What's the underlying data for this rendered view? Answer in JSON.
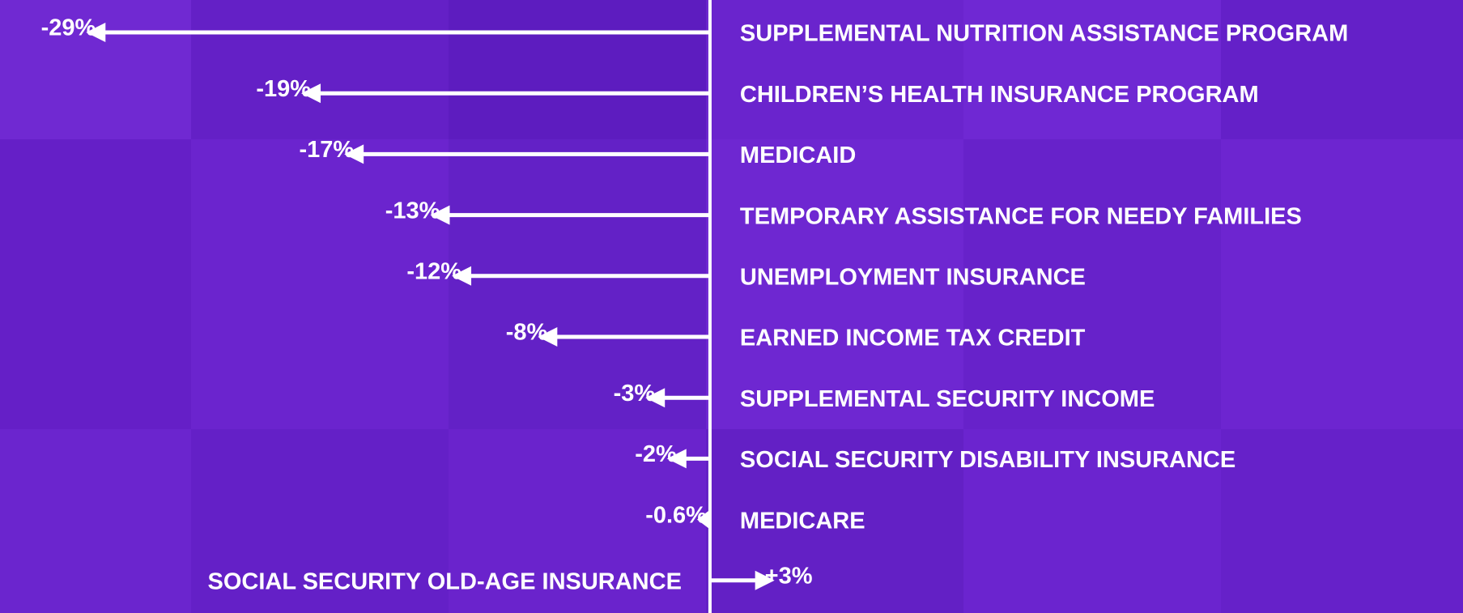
{
  "chart_data": {
    "type": "arrow",
    "categories": [
      "SUPPLEMENTAL NUTRITION ASSISTANCE PROGRAM",
      "CHILDREN’S HEALTH INSURANCE PROGRAM",
      "MEDICAID",
      "TEMPORARY ASSISTANCE FOR NEEDY FAMILIES",
      "UNEMPLOYMENT INSURANCE",
      "EARNED INCOME TAX CREDIT",
      "SUPPLEMENTAL SECURITY INCOME",
      "SOCIAL SECURITY DISABILITY INSURANCE",
      "MEDICARE",
      "SOCIAL SECURITY OLD-AGE INSURANCE"
    ],
    "values": [
      -29,
      -19,
      -17,
      -13,
      -12,
      -8,
      -3,
      -2,
      -0.6,
      3
    ],
    "value_labels": [
      "-29%",
      "-19%",
      "-17%",
      "-13%",
      "-12%",
      "-8%",
      "-3%",
      "-2%",
      "-0.6%",
      "+3%"
    ],
    "color": "#ffffff",
    "xlim": [
      -33,
      35
    ]
  }
}
